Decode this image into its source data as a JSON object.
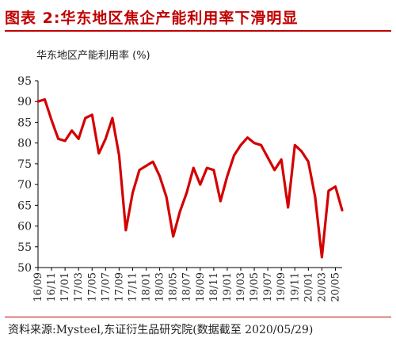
{
  "figure_title": "图表 2:华东地区焦企产能利用率下滑明显",
  "source_text": "资料来源:Mysteel,东证衍生品研究院(数据截至 2020/05/29)",
  "chart_data": {
    "type": "line",
    "title": "华东地区产能利用率 (%)",
    "xlabel": "",
    "ylabel": "",
    "ylim": [
      50,
      95
    ],
    "yticks": [
      50,
      55,
      60,
      65,
      70,
      75,
      80,
      85,
      90,
      95
    ],
    "xlim": [
      "16/09",
      "20/06"
    ],
    "xtick_labels": [
      "16/09",
      "16/11",
      "17/01",
      "17/03",
      "17/05",
      "17/07",
      "17/09",
      "17/11",
      "18/01",
      "18/03",
      "18/05",
      "18/07",
      "18/09",
      "18/11",
      "19/01",
      "19/03",
      "19/05",
      "19/07",
      "19/09",
      "19/11",
      "20/01",
      "20/03",
      "20/05"
    ],
    "grid": false,
    "line_color": "#d40000",
    "series": [
      {
        "name": "",
        "x": [
          "16/09",
          "16/10",
          "16/11",
          "16/12",
          "17/01",
          "17/02",
          "17/03",
          "17/04",
          "17/05",
          "17/06",
          "17/07",
          "17/08",
          "17/09",
          "17/10",
          "17/11",
          "17/12",
          "18/01",
          "18/02",
          "18/03",
          "18/04",
          "18/05",
          "18/06",
          "18/07",
          "18/08",
          "18/09",
          "18/10",
          "18/11",
          "18/12",
          "19/01",
          "19/02",
          "19/03",
          "19/04",
          "19/05",
          "19/06",
          "19/07",
          "19/08",
          "19/09",
          "19/10",
          "19/11",
          "19/12",
          "20/01",
          "20/02",
          "20/03",
          "20/04",
          "20/05",
          "20/06"
        ],
        "y": [
          90.0,
          90.5,
          85.5,
          81.0,
          80.5,
          83.0,
          81.0,
          86.0,
          86.8,
          77.5,
          81.0,
          86.0,
          77.0,
          59.0,
          68.0,
          73.5,
          74.5,
          75.5,
          72.0,
          67.0,
          57.5,
          63.5,
          68.0,
          74.0,
          70.0,
          74.0,
          73.5,
          66.0,
          72.0,
          77.0,
          79.5,
          81.3,
          80.0,
          79.5,
          76.5,
          73.5,
          76.0,
          64.5,
          79.5,
          78.0,
          75.5,
          67.0,
          52.5,
          68.5,
          69.5,
          63.8
        ]
      }
    ]
  }
}
